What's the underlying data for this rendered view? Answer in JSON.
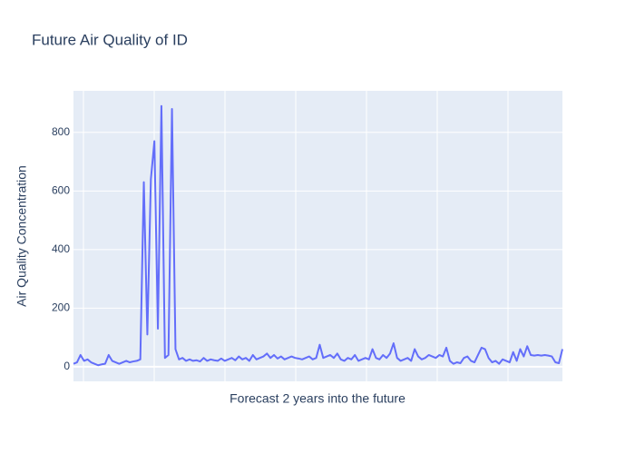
{
  "chart_data": {
    "type": "line",
    "title": "Future Air Quality of ID",
    "x_label": "Forecast 2 years into the future",
    "y_label": "Air Quality Concentration",
    "color": "#636efa",
    "grid": true,
    "ylim": [
      -50,
      942
    ],
    "yticks": [
      0,
      200,
      400,
      600,
      800
    ],
    "values": [
      10,
      15,
      40,
      20,
      25,
      15,
      10,
      5,
      8,
      10,
      40,
      20,
      15,
      10,
      15,
      20,
      15,
      18,
      20,
      25,
      630,
      110,
      640,
      770,
      130,
      890,
      30,
      40,
      880,
      60,
      25,
      30,
      20,
      25,
      20,
      22,
      18,
      30,
      20,
      25,
      22,
      20,
      28,
      20,
      25,
      30,
      22,
      35,
      25,
      30,
      20,
      40,
      25,
      30,
      35,
      45,
      30,
      40,
      28,
      35,
      25,
      30,
      35,
      30,
      28,
      25,
      30,
      35,
      25,
      30,
      75,
      30,
      35,
      40,
      30,
      45,
      25,
      20,
      30,
      25,
      40,
      20,
      25,
      30,
      25,
      60,
      30,
      25,
      40,
      30,
      45,
      80,
      30,
      20,
      25,
      30,
      20,
      60,
      35,
      25,
      30,
      40,
      35,
      30,
      40,
      35,
      65,
      20,
      10,
      15,
      12,
      30,
      35,
      20,
      15,
      40,
      65,
      60,
      30,
      15,
      20,
      10,
      25,
      20,
      15,
      50,
      20,
      60,
      35,
      70,
      40,
      38,
      40,
      38,
      40,
      38,
      35,
      15,
      12,
      60
    ]
  }
}
